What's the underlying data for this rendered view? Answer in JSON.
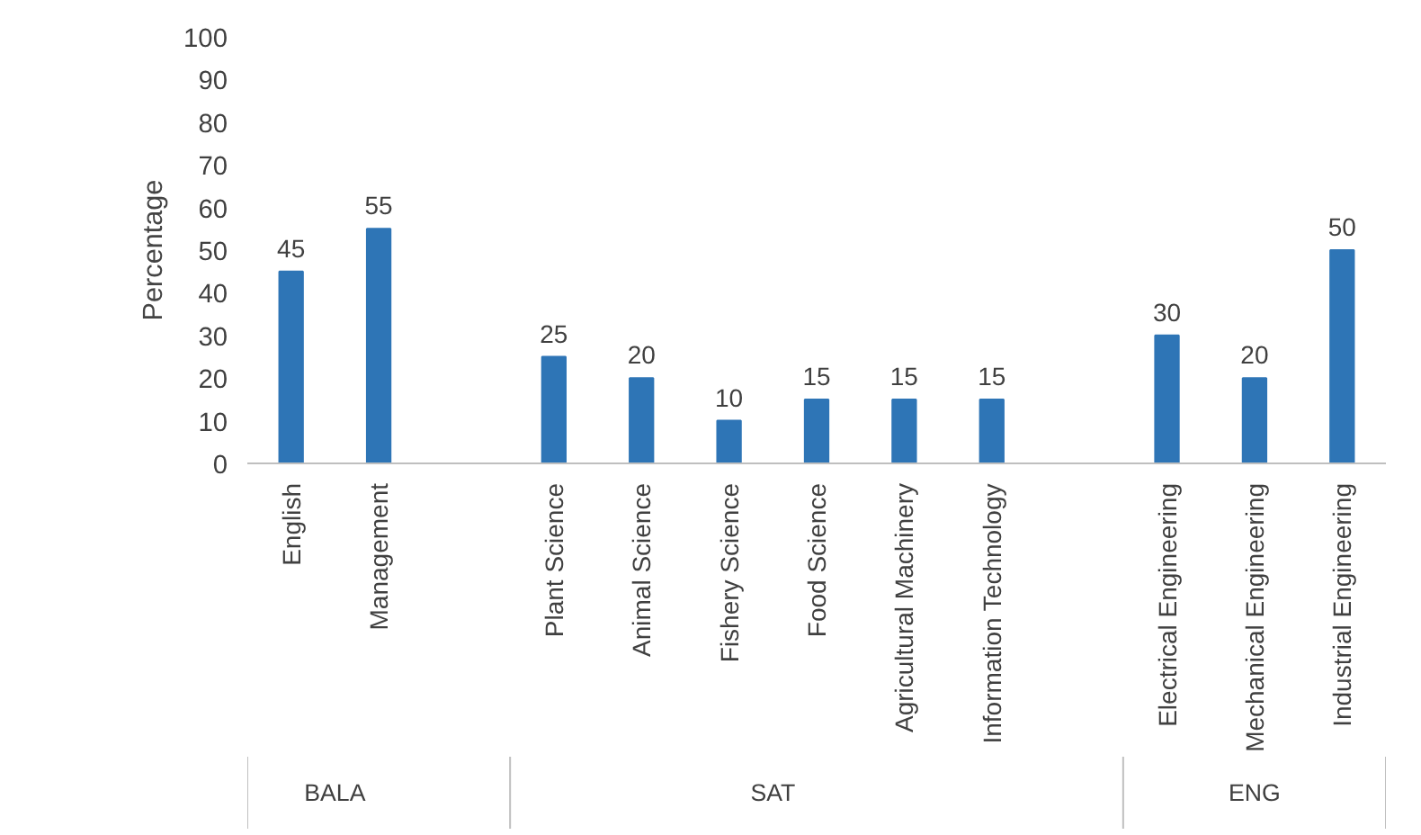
{
  "chart_data": {
    "type": "bar",
    "ylabel": "Percentage",
    "categories": [
      "English",
      "Management",
      null,
      "Plant Science",
      "Animal Science",
      "Fishery Science",
      "Food Science",
      "Agricultural Machinery",
      "Information Technology",
      null,
      "Electrical Engineering",
      "Mechanical Engineering",
      "Industrial Engineering"
    ],
    "values": [
      45,
      55,
      null,
      25,
      20,
      10,
      15,
      15,
      15,
      null,
      30,
      20,
      50
    ],
    "color": "#2e75b6",
    "data_labels": true,
    "ylim": [
      0,
      100
    ],
    "yticks": [
      0,
      10,
      20,
      30,
      40,
      50,
      60,
      70,
      80,
      90,
      100
    ],
    "grid": false,
    "annotations": [
      "BALA",
      "SAT",
      "ENG"
    ]
  }
}
